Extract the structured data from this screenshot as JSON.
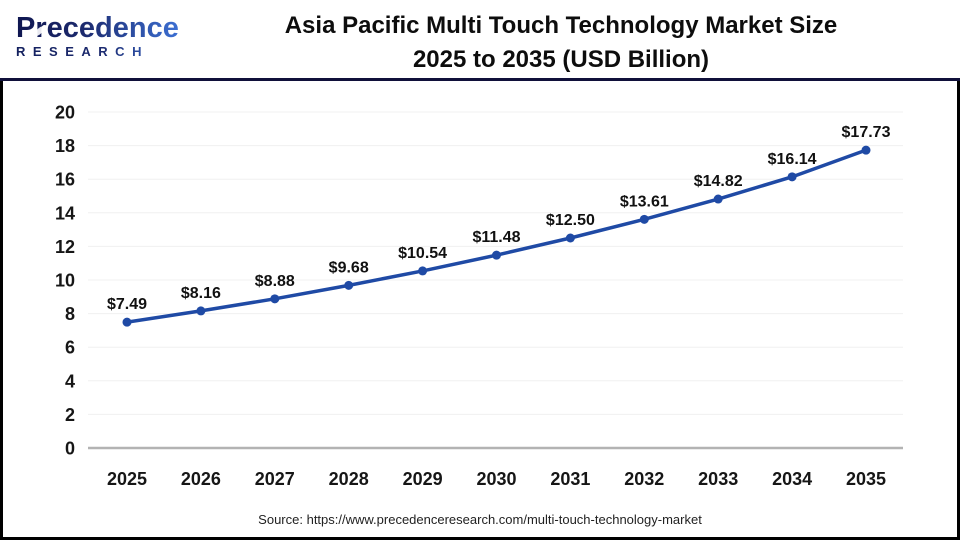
{
  "header": {
    "logo": {
      "brand": "Precedence",
      "sub": "RESEARCH"
    },
    "title_line1": "Asia Pacific Multi Touch Technology Market Size",
    "title_line2": "2025 to 2035 (USD Billion)"
  },
  "chart_data": {
    "type": "line",
    "title": "Asia Pacific Multi Touch Technology Market Size 2025 to 2035 (USD Billion)",
    "categories": [
      "2025",
      "2026",
      "2027",
      "2028",
      "2029",
      "2030",
      "2031",
      "2032",
      "2033",
      "2034",
      "2035"
    ],
    "series": [
      {
        "name": "Market Size (USD Billion)",
        "values": [
          7.49,
          8.16,
          8.88,
          9.68,
          10.54,
          11.48,
          12.5,
          13.61,
          14.82,
          16.14,
          17.73
        ],
        "labels": [
          "$7.49",
          "$8.16",
          "$8.88",
          "$9.68",
          "$10.54",
          "$11.48",
          "$12.50",
          "$13.61",
          "$14.82",
          "$16.14",
          "$17.73"
        ]
      }
    ],
    "xlabel": "",
    "ylabel": "",
    "ylim": [
      0,
      20
    ],
    "ytick_step": 2,
    "grid": true,
    "legend": "none",
    "line_color": "#1F4AA5",
    "marker": "circle"
  },
  "footer": {
    "source": "Source: https://www.precedenceresearch.com/multi-touch-technology-market"
  },
  "colors": {
    "accent_line": "#1F4AA5",
    "header_rule": "#10103A",
    "grid": "#F0F0F0",
    "axis": "#B3B3B3",
    "text": "#111111",
    "logo_navy": "#1C2A6E",
    "logo_blue": "#3E74DA"
  }
}
